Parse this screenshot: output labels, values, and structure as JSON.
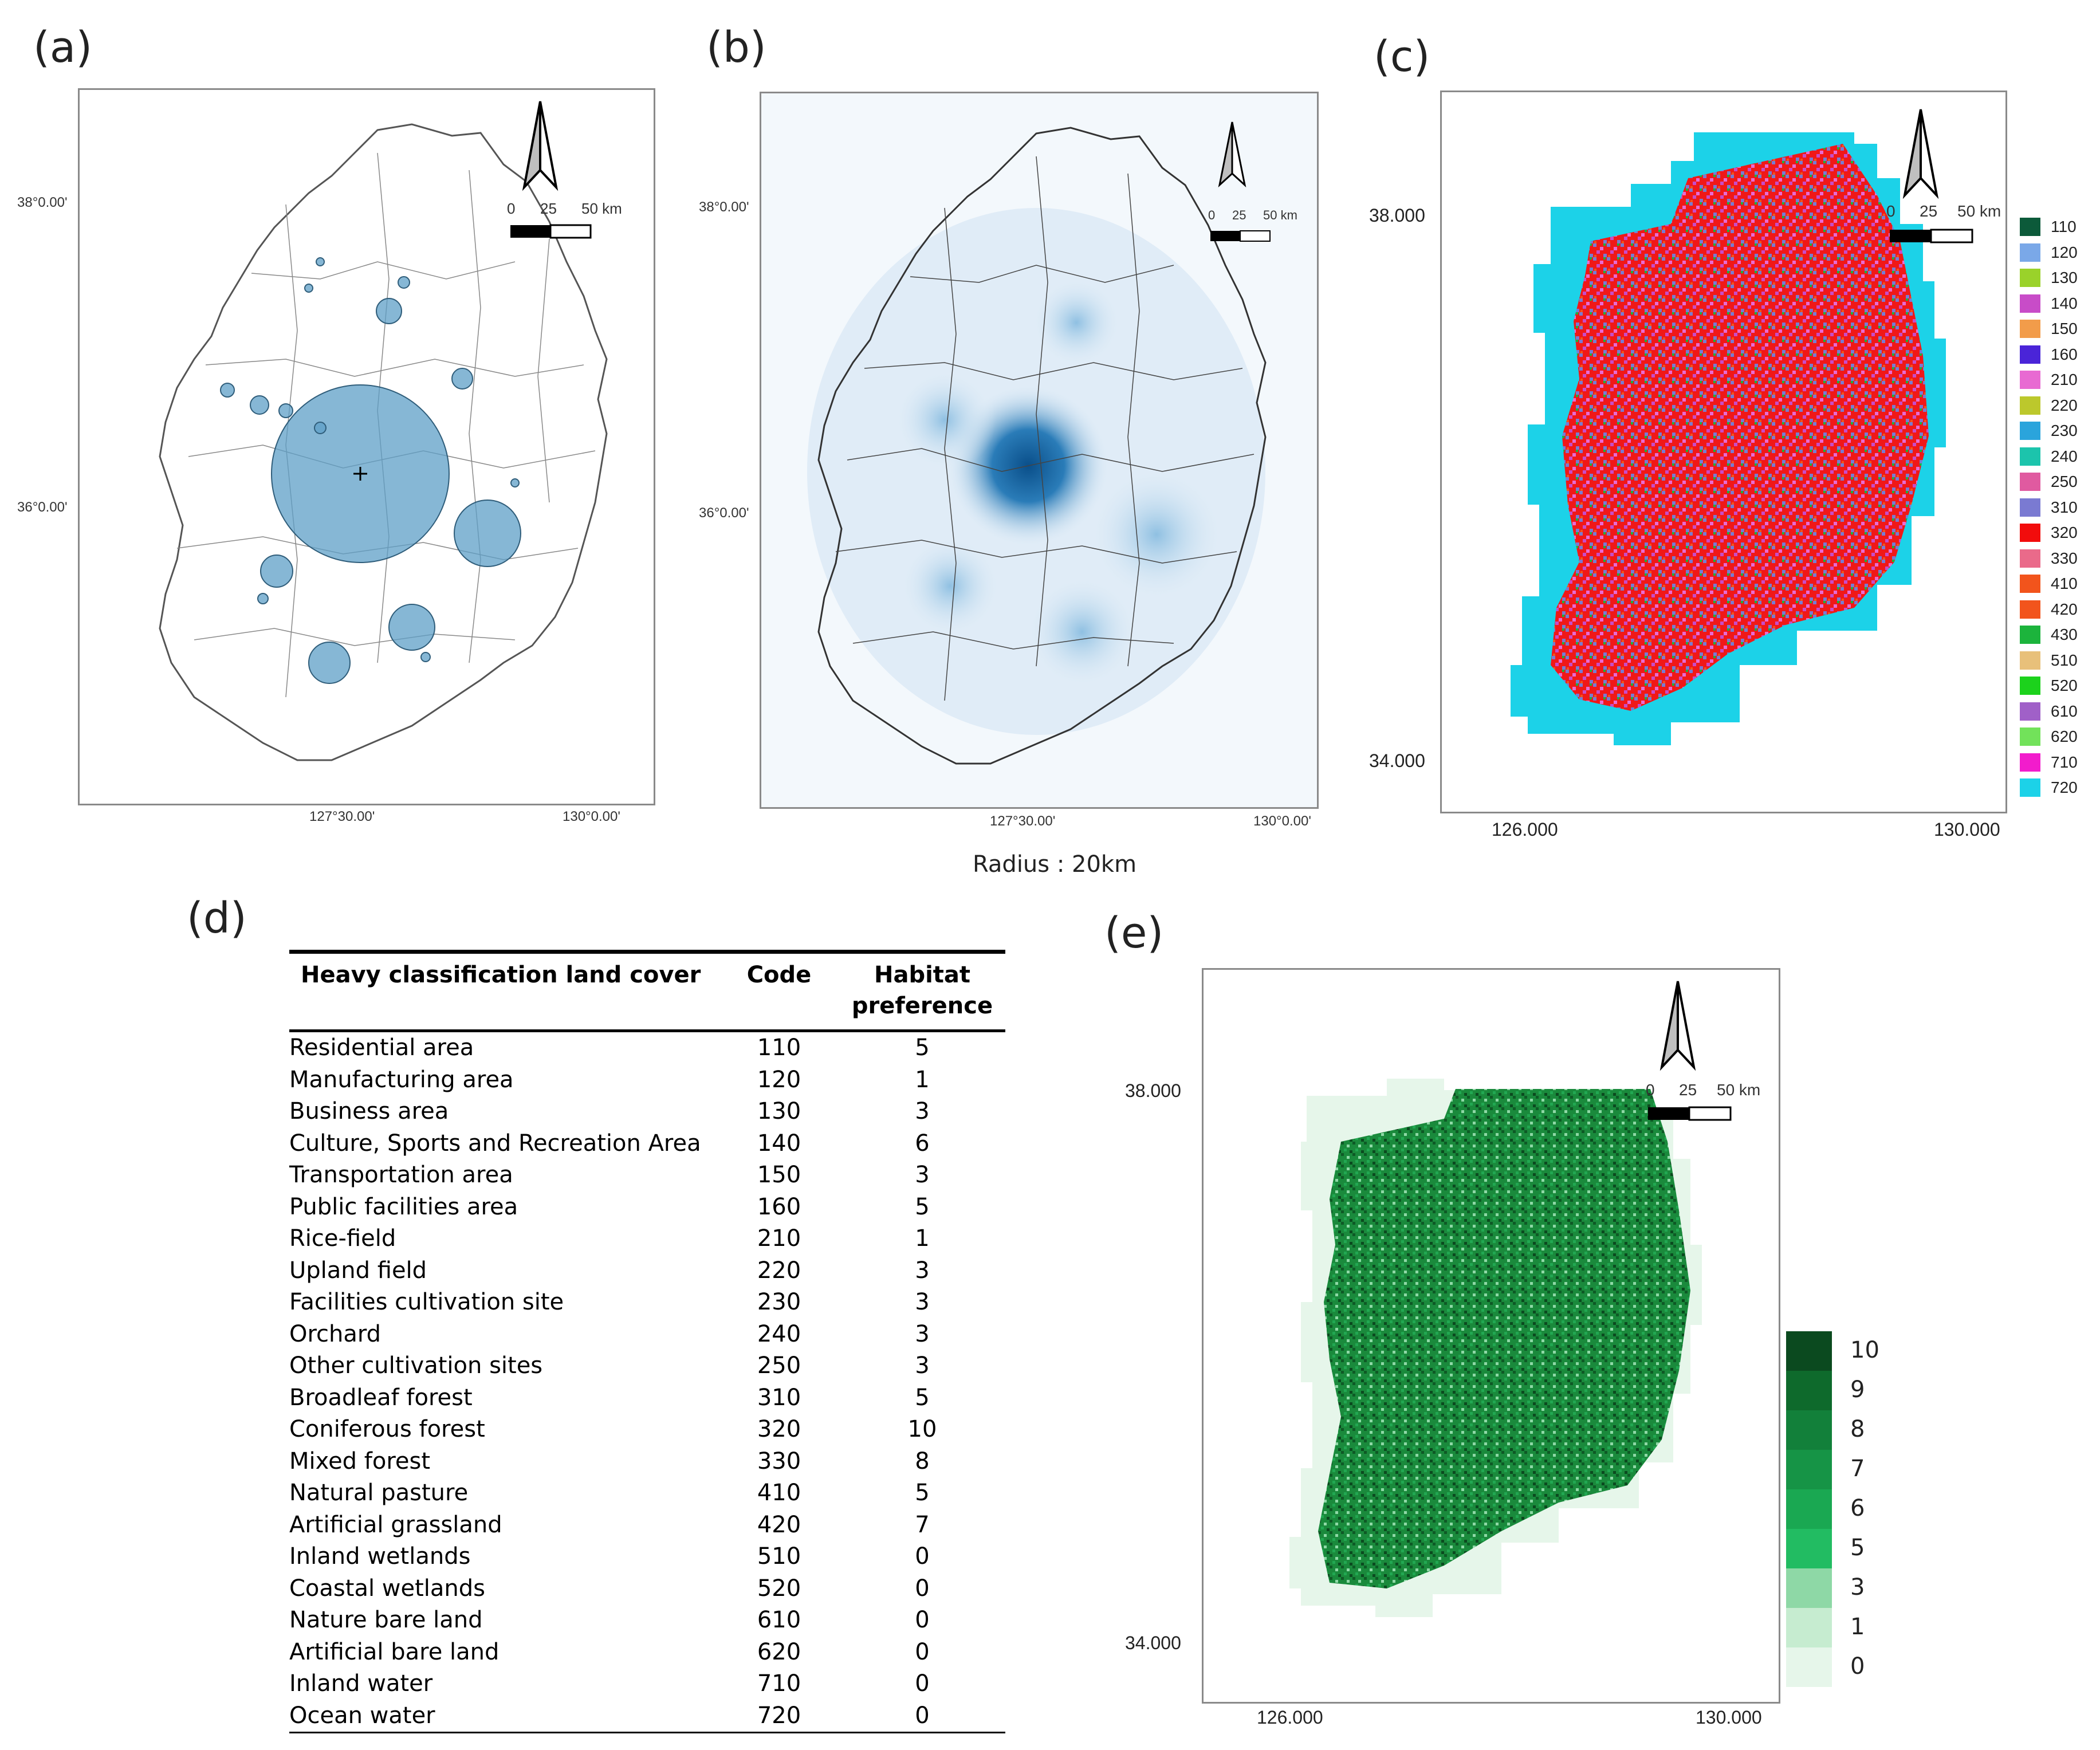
{
  "panels": {
    "a": {
      "label": "(a)",
      "lat_label": "38°0.00'",
      "lat_label2": "36°0.00'",
      "lon_label": "127°30.00'",
      "lon_label2": "130°0.00'"
    },
    "b": {
      "label": "(b)",
      "lat_label": "38°0.00'",
      "lat_label2": "36°0.00'",
      "lon_label": "127°30.00'",
      "lon_label2": "130°0.00'",
      "caption": "Radius : 20km"
    },
    "c": {
      "label": "(c)",
      "lat_top": "38.000",
      "lat_bottom": "34.000",
      "lon_left": "126.000",
      "lon_right": "130.000",
      "legend": [
        {
          "code": "110",
          "color": "#0c5a3a"
        },
        {
          "code": "120",
          "color": "#7aa8e8"
        },
        {
          "code": "130",
          "color": "#9ad22a"
        },
        {
          "code": "140",
          "color": "#c84cc8"
        },
        {
          "code": "150",
          "color": "#f29c4a"
        },
        {
          "code": "160",
          "color": "#4a24d8"
        },
        {
          "code": "210",
          "color": "#e86ad2"
        },
        {
          "code": "220",
          "color": "#bcc82c"
        },
        {
          "code": "230",
          "color": "#2aa4dc"
        },
        {
          "code": "240",
          "color": "#1cc4ac"
        },
        {
          "code": "250",
          "color": "#e05aa0"
        },
        {
          "code": "310",
          "color": "#7a7ad2"
        },
        {
          "code": "320",
          "color": "#f20c0c"
        },
        {
          "code": "330",
          "color": "#ea6a8a"
        },
        {
          "code": "410",
          "color": "#f2541c"
        },
        {
          "code": "420",
          "color": "#f2541c"
        },
        {
          "code": "430",
          "color": "#1cb43c"
        },
        {
          "code": "510",
          "color": "#e8c07a"
        },
        {
          "code": "520",
          "color": "#1cd21c"
        },
        {
          "code": "610",
          "color": "#a060c8"
        },
        {
          "code": "620",
          "color": "#72e25a"
        },
        {
          "code": "710",
          "color": "#f21ccc"
        },
        {
          "code": "720",
          "color": "#1cd2e8"
        }
      ]
    },
    "d": {
      "label": "(d)",
      "headers": {
        "land_cover": "Heavy classification land cover",
        "code": "Code",
        "habitat_line1": "Habitat",
        "habitat_line2": "preference"
      },
      "rows": [
        {
          "name": "Residential area",
          "code": "110",
          "pref": "5"
        },
        {
          "name": "Manufacturing area",
          "code": "120",
          "pref": "1"
        },
        {
          "name": "Business area",
          "code": "130",
          "pref": "3"
        },
        {
          "name": "Culture, Sports and Recreation Area",
          "code": "140",
          "pref": "6"
        },
        {
          "name": "Transportation area",
          "code": "150",
          "pref": "3"
        },
        {
          "name": "Public facilities area",
          "code": "160",
          "pref": "5"
        },
        {
          "name": "Rice-field",
          "code": "210",
          "pref": "1"
        },
        {
          "name": "Upland field",
          "code": "220",
          "pref": "3"
        },
        {
          "name": "Facilities cultivation site",
          "code": "230",
          "pref": "3"
        },
        {
          "name": "Orchard",
          "code": "240",
          "pref": "3"
        },
        {
          "name": "Other cultivation sites",
          "code": "250",
          "pref": "3"
        },
        {
          "name": "Broadleaf forest",
          "code": "310",
          "pref": "5"
        },
        {
          "name": "Coniferous forest",
          "code": "320",
          "pref": "10"
        },
        {
          "name": "Mixed forest",
          "code": "330",
          "pref": "8"
        },
        {
          "name": "Natural pasture",
          "code": "410",
          "pref": "5"
        },
        {
          "name": "Artificial grassland",
          "code": "420",
          "pref": "7"
        },
        {
          "name": "Inland wetlands",
          "code": "510",
          "pref": "0"
        },
        {
          "name": "Coastal wetlands",
          "code": "520",
          "pref": "0"
        },
        {
          "name": "Nature bare land",
          "code": "610",
          "pref": "0"
        },
        {
          "name": "Artificial bare land",
          "code": "620",
          "pref": "0"
        },
        {
          "name": "Inland water",
          "code": "710",
          "pref": "0"
        },
        {
          "name": "Ocean water",
          "code": "720",
          "pref": "0"
        }
      ]
    },
    "e": {
      "label": "(e)",
      "lat_top": "38.000",
      "lat_bottom": "34.000",
      "lon_left": "126.000",
      "lon_right": "130.000",
      "legend": [
        {
          "value": "10",
          "color": "#0b4a1f"
        },
        {
          "value": "9",
          "color": "#0e6a2c"
        },
        {
          "value": "8",
          "color": "#12803a"
        },
        {
          "value": "7",
          "color": "#169446"
        },
        {
          "value": "6",
          "color": "#1aa852"
        },
        {
          "value": "5",
          "color": "#22bc62"
        },
        {
          "value": "3",
          "color": "#8ed8a6"
        },
        {
          "value": "1",
          "color": "#c6ecd0"
        },
        {
          "value": "0",
          "color": "#e6f6ea"
        }
      ]
    }
  },
  "scale_bar": {
    "t0": "0",
    "t25": "25",
    "t50": "50 km"
  }
}
